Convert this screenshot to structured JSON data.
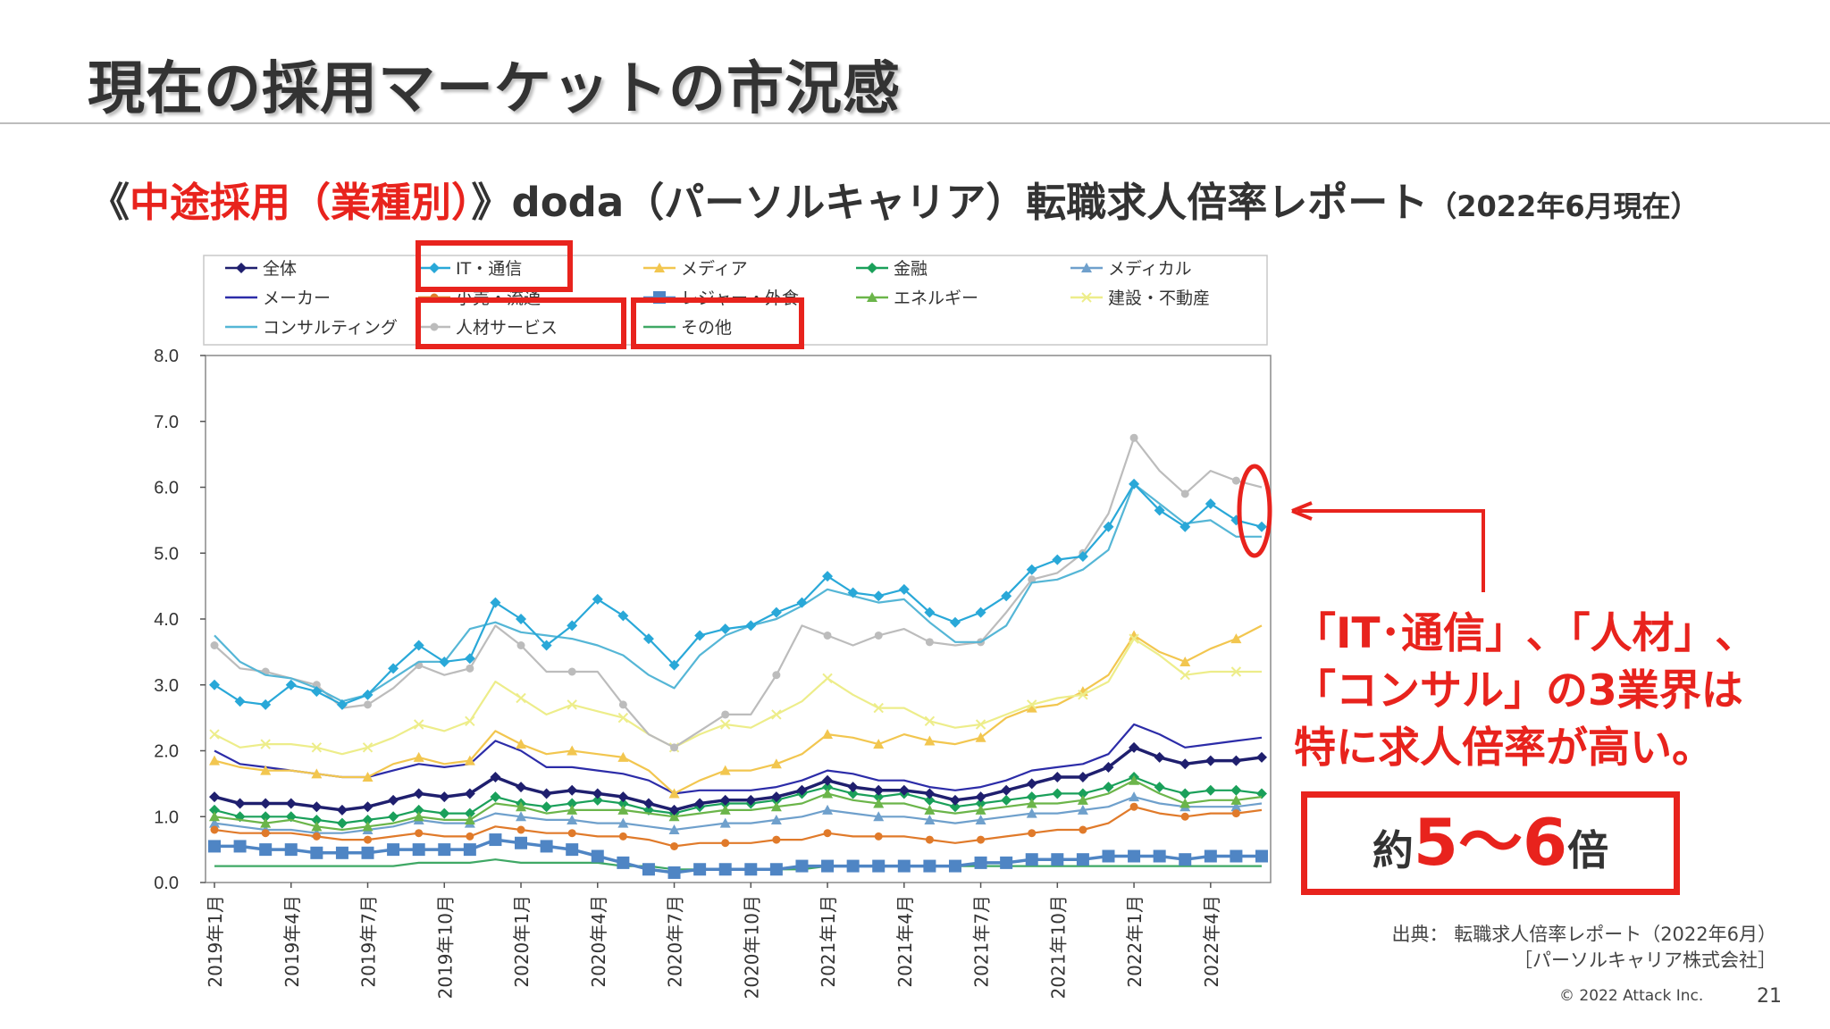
{
  "slide": {
    "title": "現在の採用マーケットの市況感",
    "subtitle": {
      "open": "《",
      "highlight": "中途採用（業種別）",
      "main": "》doda（パーソルキャリア）転職求人倍率レポート",
      "date": "（2022年6月現在）"
    },
    "callout": {
      "line1": "「IT･通信」､「人材」､",
      "line2": "「コンサル」の3業界は",
      "line3": "特に求人倍率が高い。"
    },
    "ratio_box": {
      "prefix": "約",
      "range": "5〜6",
      "suffix": "倍"
    },
    "source": {
      "line1": "出典： 転職求人倍率レポート（2022年6月）",
      "line2": "［パーソルキャリア株式会社］"
    },
    "copyright": "© 2022 Attack Inc.",
    "page_number": "21",
    "colors": {
      "accent_red": "#e8231d",
      "text": "#333333"
    }
  },
  "chart_data": {
    "type": "line",
    "title": "",
    "xlabel": "",
    "ylabel": "",
    "ylim": [
      0,
      8
    ],
    "yticks": [
      "0.0",
      "1.0",
      "2.0",
      "3.0",
      "4.0",
      "5.0",
      "6.0",
      "7.0",
      "8.0"
    ],
    "xtick_labels": [
      "2019年1月",
      "2019年4月",
      "2019年7月",
      "2019年10月",
      "2020年1月",
      "2020年4月",
      "2020年7月",
      "2020年10月",
      "2021年1月",
      "2021年4月",
      "2021年7月",
      "2021年10月",
      "2022年1月",
      "2022年4月"
    ],
    "x": [
      "2019-01",
      "2019-02",
      "2019-03",
      "2019-04",
      "2019-05",
      "2019-06",
      "2019-07",
      "2019-08",
      "2019-09",
      "2019-10",
      "2019-11",
      "2019-12",
      "2020-01",
      "2020-02",
      "2020-03",
      "2020-04",
      "2020-05",
      "2020-06",
      "2020-07",
      "2020-08",
      "2020-09",
      "2020-10",
      "2020-11",
      "2020-12",
      "2021-01",
      "2021-02",
      "2021-03",
      "2021-04",
      "2021-05",
      "2021-06",
      "2021-07",
      "2021-08",
      "2021-09",
      "2021-10",
      "2021-11",
      "2021-12",
      "2022-01",
      "2022-02",
      "2022-03",
      "2022-04",
      "2022-05",
      "2022-06"
    ],
    "grid": false,
    "legend_position": "top",
    "highlighted_legend_entries": [
      "IT・通信",
      "コンサルティング",
      "人材サービス"
    ],
    "series": [
      {
        "name": "全体",
        "color": "#1f1f6e",
        "marker": "diamond",
        "values": [
          1.3,
          1.2,
          1.2,
          1.2,
          1.15,
          1.1,
          1.15,
          1.25,
          1.35,
          1.3,
          1.35,
          1.6,
          1.45,
          1.35,
          1.4,
          1.35,
          1.3,
          1.2,
          1.1,
          1.2,
          1.25,
          1.25,
          1.3,
          1.4,
          1.55,
          1.45,
          1.4,
          1.4,
          1.35,
          1.25,
          1.3,
          1.4,
          1.5,
          1.6,
          1.6,
          1.75,
          2.05,
          1.9,
          1.8,
          1.85,
          1.85,
          1.9
        ]
      },
      {
        "name": "IT・通信",
        "color": "#29a8d8",
        "marker": "diamond",
        "values": [
          3.0,
          2.75,
          2.7,
          3.0,
          2.9,
          2.7,
          2.85,
          3.25,
          3.6,
          3.35,
          3.4,
          4.25,
          4.0,
          3.6,
          3.9,
          4.3,
          4.05,
          3.7,
          3.3,
          3.75,
          3.85,
          3.9,
          4.1,
          4.25,
          4.65,
          4.4,
          4.35,
          4.45,
          4.1,
          3.95,
          4.1,
          4.35,
          4.75,
          4.9,
          4.95,
          5.4,
          6.05,
          5.65,
          5.4,
          5.75,
          5.5,
          5.4
        ]
      },
      {
        "name": "メディア",
        "color": "#f2c64f",
        "marker": "triangle",
        "values": [
          1.85,
          1.75,
          1.7,
          1.7,
          1.65,
          1.6,
          1.6,
          1.8,
          1.9,
          1.8,
          1.85,
          2.3,
          2.1,
          1.95,
          2.0,
          1.95,
          1.9,
          1.7,
          1.35,
          1.55,
          1.7,
          1.7,
          1.8,
          1.95,
          2.25,
          2.2,
          2.1,
          2.25,
          2.15,
          2.1,
          2.2,
          2.5,
          2.65,
          2.7,
          2.9,
          3.15,
          3.75,
          3.5,
          3.35,
          3.55,
          3.7,
          3.9
        ]
      },
      {
        "name": "金融",
        "color": "#1aa05a",
        "marker": "diamond",
        "values": [
          1.1,
          1.0,
          1.0,
          1.0,
          0.95,
          0.9,
          0.95,
          1.0,
          1.1,
          1.05,
          1.05,
          1.3,
          1.2,
          1.15,
          1.2,
          1.25,
          1.2,
          1.1,
          1.05,
          1.15,
          1.2,
          1.2,
          1.25,
          1.35,
          1.45,
          1.35,
          1.3,
          1.35,
          1.25,
          1.15,
          1.2,
          1.25,
          1.3,
          1.35,
          1.35,
          1.45,
          1.6,
          1.45,
          1.35,
          1.4,
          1.4,
          1.35
        ]
      },
      {
        "name": "メディカル",
        "color": "#6fa0cc",
        "marker": "triangle",
        "values": [
          0.9,
          0.85,
          0.8,
          0.8,
          0.75,
          0.75,
          0.8,
          0.85,
          0.95,
          0.9,
          0.9,
          1.05,
          1.0,
          0.95,
          0.95,
          0.9,
          0.9,
          0.85,
          0.8,
          0.85,
          0.9,
          0.9,
          0.95,
          1.0,
          1.1,
          1.05,
          1.0,
          1.0,
          0.95,
          0.9,
          0.95,
          1.0,
          1.05,
          1.05,
          1.1,
          1.15,
          1.3,
          1.2,
          1.15,
          1.15,
          1.15,
          1.2
        ]
      },
      {
        "name": "メーカー",
        "color": "#2c2ca8",
        "marker": "none",
        "values": [
          2.0,
          1.8,
          1.75,
          1.7,
          1.65,
          1.6,
          1.6,
          1.7,
          1.8,
          1.75,
          1.8,
          2.15,
          2.0,
          1.75,
          1.75,
          1.7,
          1.65,
          1.55,
          1.35,
          1.4,
          1.4,
          1.4,
          1.45,
          1.55,
          1.7,
          1.65,
          1.55,
          1.55,
          1.45,
          1.4,
          1.45,
          1.55,
          1.7,
          1.75,
          1.8,
          1.95,
          2.4,
          2.25,
          2.05,
          2.1,
          2.15,
          2.2
        ]
      },
      {
        "name": "小売・流通",
        "color": "#e07a2a",
        "marker": "circle",
        "values": [
          0.8,
          0.75,
          0.75,
          0.75,
          0.7,
          0.65,
          0.65,
          0.7,
          0.75,
          0.7,
          0.7,
          0.85,
          0.8,
          0.75,
          0.75,
          0.7,
          0.7,
          0.65,
          0.55,
          0.6,
          0.6,
          0.6,
          0.65,
          0.65,
          0.75,
          0.7,
          0.7,
          0.7,
          0.65,
          0.6,
          0.65,
          0.7,
          0.75,
          0.8,
          0.8,
          0.9,
          1.15,
          1.05,
          1.0,
          1.05,
          1.05,
          1.1
        ]
      },
      {
        "name": "レジャー・外食",
        "color": "#4f85c4",
        "marker": "square",
        "values": [
          0.55,
          0.55,
          0.5,
          0.5,
          0.45,
          0.45,
          0.45,
          0.5,
          0.5,
          0.5,
          0.5,
          0.65,
          0.6,
          0.55,
          0.5,
          0.4,
          0.3,
          0.2,
          0.15,
          0.2,
          0.2,
          0.2,
          0.2,
          0.25,
          0.25,
          0.25,
          0.25,
          0.25,
          0.25,
          0.25,
          0.3,
          0.3,
          0.35,
          0.35,
          0.35,
          0.4,
          0.4,
          0.4,
          0.35,
          0.4,
          0.4,
          0.4
        ]
      },
      {
        "name": "エネルギー",
        "color": "#6bb54a",
        "marker": "triangle",
        "values": [
          1.0,
          0.95,
          0.9,
          0.95,
          0.85,
          0.8,
          0.85,
          0.9,
          1.0,
          0.95,
          0.95,
          1.2,
          1.15,
          1.05,
          1.1,
          1.1,
          1.1,
          1.05,
          1.0,
          1.05,
          1.1,
          1.1,
          1.15,
          1.2,
          1.35,
          1.25,
          1.2,
          1.2,
          1.1,
          1.05,
          1.1,
          1.15,
          1.2,
          1.2,
          1.25,
          1.35,
          1.55,
          1.35,
          1.2,
          1.25,
          1.25,
          1.3
        ]
      },
      {
        "name": "建設・不動産",
        "color": "#eded8a",
        "marker": "x",
        "values": [
          2.25,
          2.05,
          2.1,
          2.1,
          2.05,
          1.95,
          2.05,
          2.2,
          2.4,
          2.3,
          2.45,
          3.05,
          2.8,
          2.55,
          2.7,
          2.6,
          2.5,
          2.25,
          2.05,
          2.25,
          2.4,
          2.35,
          2.55,
          2.75,
          3.1,
          2.85,
          2.65,
          2.65,
          2.45,
          2.35,
          2.4,
          2.55,
          2.7,
          2.8,
          2.85,
          3.05,
          3.7,
          3.45,
          3.15,
          3.2,
          3.2,
          3.2
        ]
      },
      {
        "name": "コンサルティング",
        "color": "#55b6d6",
        "marker": "none",
        "values": [
          3.75,
          3.35,
          3.15,
          3.1,
          2.95,
          2.75,
          2.85,
          3.1,
          3.35,
          3.35,
          3.85,
          3.95,
          3.8,
          3.75,
          3.7,
          3.6,
          3.45,
          3.15,
          2.95,
          3.45,
          3.75,
          3.9,
          4.0,
          4.2,
          4.45,
          4.35,
          4.25,
          4.3,
          3.95,
          3.65,
          3.65,
          3.9,
          4.55,
          4.6,
          4.75,
          5.05,
          6.05,
          5.75,
          5.45,
          5.5,
          5.25,
          5.25
        ]
      },
      {
        "name": "人材サービス",
        "color": "#bcbcbc",
        "marker": "circle",
        "values": [
          3.6,
          3.25,
          3.2,
          3.1,
          3.0,
          2.65,
          2.7,
          2.95,
          3.3,
          3.15,
          3.25,
          3.9,
          3.6,
          3.2,
          3.2,
          3.2,
          2.7,
          2.25,
          2.05,
          2.3,
          2.55,
          2.55,
          3.15,
          3.9,
          3.75,
          3.6,
          3.75,
          3.85,
          3.65,
          3.6,
          3.65,
          4.1,
          4.6,
          4.7,
          5.0,
          5.6,
          6.75,
          6.25,
          5.9,
          6.25,
          6.1,
          6.0
        ]
      },
      {
        "name": "その他",
        "color": "#3fa865",
        "marker": "none",
        "values": [
          0.25,
          0.25,
          0.25,
          0.25,
          0.25,
          0.25,
          0.25,
          0.25,
          0.3,
          0.3,
          0.3,
          0.35,
          0.3,
          0.3,
          0.3,
          0.3,
          0.25,
          0.25,
          0.2,
          0.2,
          0.2,
          0.2,
          0.2,
          0.2,
          0.25,
          0.25,
          0.25,
          0.25,
          0.25,
          0.25,
          0.25,
          0.25,
          0.25,
          0.25,
          0.25,
          0.25,
          0.25,
          0.25,
          0.25,
          0.25,
          0.25,
          0.25
        ]
      }
    ]
  }
}
